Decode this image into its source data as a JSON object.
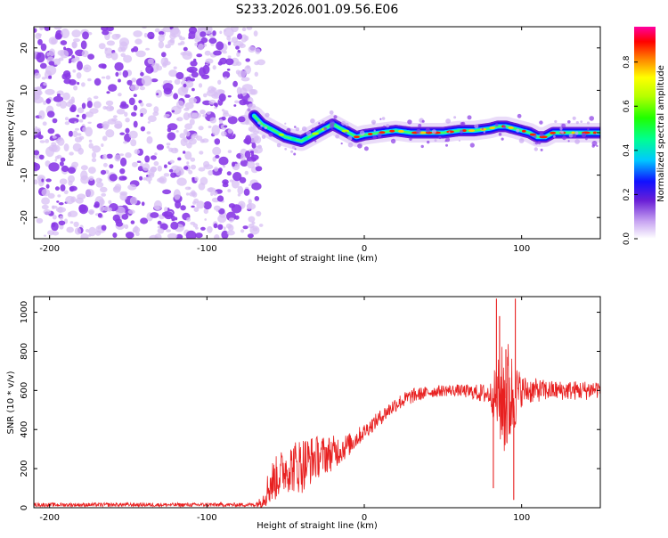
{
  "title": "S233.2026.001.09.56.E06",
  "colors": {
    "background": "#ffffff",
    "axis": "#000000",
    "snr_line": "#e82020",
    "noise_dot_light": "#d8c0f4",
    "noise_dot_dark": "#8a3ae6"
  },
  "chart_data": [
    {
      "type": "heatmap",
      "name": "spectrogram",
      "xlabel": "Height of straight line (km)",
      "ylabel": "Frequency (Hz)",
      "xlim": [
        -210,
        150
      ],
      "ylim": [
        -25,
        25
      ],
      "xticks": [
        -200,
        -100,
        0,
        100
      ],
      "yticks": [
        -20,
        -10,
        0,
        10,
        20
      ],
      "noise_region_x": [
        -210,
        -70
      ],
      "signal_ridge": {
        "x": [
          -70,
          -65,
          -60,
          -55,
          -50,
          -45,
          -40,
          -35,
          -30,
          -25,
          -20,
          -15,
          -10,
          -5,
          0,
          10,
          20,
          30,
          40,
          50,
          60,
          70,
          80,
          85,
          90,
          95,
          100,
          105,
          110,
          115,
          120,
          130,
          140,
          150
        ],
        "freq": [
          4,
          2,
          1,
          0,
          -1,
          -1.5,
          -2,
          -1,
          0,
          1,
          2,
          1,
          0,
          -1,
          -0.5,
          0,
          0.5,
          0,
          0,
          0,
          0.5,
          0.5,
          1,
          1.5,
          1.5,
          1,
          0.5,
          0,
          -1,
          -1,
          0,
          0,
          0,
          0
        ]
      },
      "colorbar": {
        "label": "Normalized spectral amplitude",
        "ticks": [
          0.0,
          0.2,
          0.4,
          0.6,
          0.8
        ],
        "tick_labels": [
          "0.0",
          "0.2",
          "0.4",
          "0.6",
          "0.8"
        ],
        "range": [
          0,
          0.96
        ]
      }
    },
    {
      "type": "line",
      "name": "snr",
      "xlabel": "Height of straight line (km)",
      "ylabel": "SNR (10 * v/v)",
      "xlim": [
        -210,
        150
      ],
      "ylim": [
        0,
        1080
      ],
      "xticks": [
        -200,
        -100,
        0,
        100
      ],
      "yticks": [
        0,
        200,
        400,
        600,
        800,
        1000
      ],
      "envelope": {
        "x": [
          -210,
          -100,
          -70,
          -65,
          -60,
          -50,
          -40,
          -30,
          -20,
          -10,
          0,
          10,
          20,
          30,
          40,
          50,
          60,
          70,
          80,
          85,
          90,
          95,
          100,
          110,
          120,
          130,
          140,
          150
        ],
        "mean": [
          15,
          15,
          15,
          30,
          120,
          200,
          220,
          260,
          280,
          320,
          390,
          460,
          530,
          570,
          590,
          600,
          600,
          590,
          580,
          560,
          560,
          570,
          600,
          600,
          600,
          600,
          600,
          610
        ],
        "amp": [
          10,
          10,
          10,
          30,
          110,
          120,
          150,
          110,
          90,
          60,
          40,
          40,
          40,
          40,
          30,
          30,
          30,
          40,
          60,
          200,
          350,
          200,
          80,
          60,
          50,
          50,
          50,
          50
        ]
      },
      "spikes": [
        {
          "x": 84,
          "y": 1070
        },
        {
          "x": 86,
          "y": 980
        },
        {
          "x": 90,
          "y": 810
        },
        {
          "x": 96,
          "y": 1070
        },
        {
          "x": 95,
          "y": 40
        },
        {
          "x": 82,
          "y": 100
        }
      ]
    }
  ]
}
